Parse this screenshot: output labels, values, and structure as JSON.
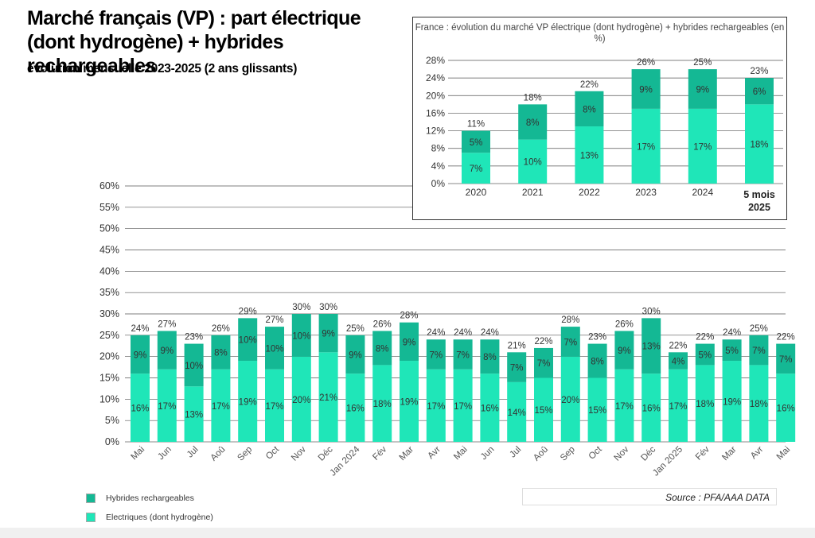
{
  "title": "Marché français (VP) : part électrique (dont hydrogène) + hybrides rechargeables",
  "subtitle": "évolution mensuelle 2023-2025 (2 ans glissants)",
  "source": "Source : PFA/AAA DATA",
  "colors": {
    "electric": "#1fe6b8",
    "hybrid": "#14b894",
    "grid": "#555555"
  },
  "legend": [
    {
      "name": "hybrid",
      "label": "Hybrides rechargeables"
    },
    {
      "name": "electric",
      "label": "Electriques (dont hydrogène)"
    }
  ],
  "chart_data": [
    {
      "type": "bar",
      "stacked": true,
      "title": "",
      "ylim": [
        0,
        60
      ],
      "yticks": [
        "0%",
        "5%",
        "10%",
        "15%",
        "20%",
        "25%",
        "30%",
        "35%",
        "40%",
        "45%",
        "50%",
        "55%",
        "60%"
      ],
      "categories": [
        "Mai",
        "Jun",
        "Jul",
        "Aoû",
        "Sep",
        "Oct",
        "Nov",
        "Déc",
        "Jan 2024",
        "Fév",
        "Mar",
        "Avr",
        "Mai",
        "Jun",
        "Jul",
        "Aoû",
        "Sep",
        "Oct",
        "Nov",
        "Déc",
        "Jan 2025",
        "Fév",
        "Mar",
        "Avr",
        "Mai"
      ],
      "series": [
        {
          "name": "Electriques (dont hydrogène)",
          "values": [
            16,
            17,
            13,
            17,
            19,
            17,
            20,
            21,
            16,
            18,
            19,
            17,
            17,
            16,
            14,
            15,
            20,
            15,
            17,
            16,
            17,
            18,
            19,
            18,
            16
          ]
        },
        {
          "name": "Hybrides rechargeables",
          "values": [
            9,
            9,
            10,
            8,
            10,
            10,
            10,
            9,
            9,
            8,
            9,
            7,
            7,
            8,
            7,
            7,
            7,
            8,
            9,
            13,
            4,
            5,
            5,
            7,
            7
          ]
        }
      ],
      "totals": [
        24,
        27,
        23,
        26,
        29,
        27,
        30,
        30,
        25,
        26,
        28,
        24,
        24,
        24,
        21,
        22,
        28,
        23,
        26,
        30,
        22,
        22,
        24,
        25,
        22
      ]
    },
    {
      "type": "bar",
      "stacked": true,
      "title": "France : évolution du marché VP électrique (dont hydrogène) + hybrides rechargeables (en %)",
      "ylim": [
        0,
        28
      ],
      "yticks": [
        "0%",
        "4%",
        "8%",
        "12%",
        "16%",
        "20%",
        "24%",
        "28%"
      ],
      "categories": [
        "2020",
        "2021",
        "2022",
        "2023",
        "2024",
        "5 mois 2025"
      ],
      "series": [
        {
          "name": "Electriques (dont hydrogène)",
          "values": [
            7,
            10,
            13,
            17,
            17,
            18
          ]
        },
        {
          "name": "Hybrides rechargeables",
          "values": [
            5,
            8,
            8,
            9,
            9,
            6
          ]
        }
      ],
      "totals": [
        11,
        18,
        22,
        26,
        25,
        23
      ]
    }
  ]
}
